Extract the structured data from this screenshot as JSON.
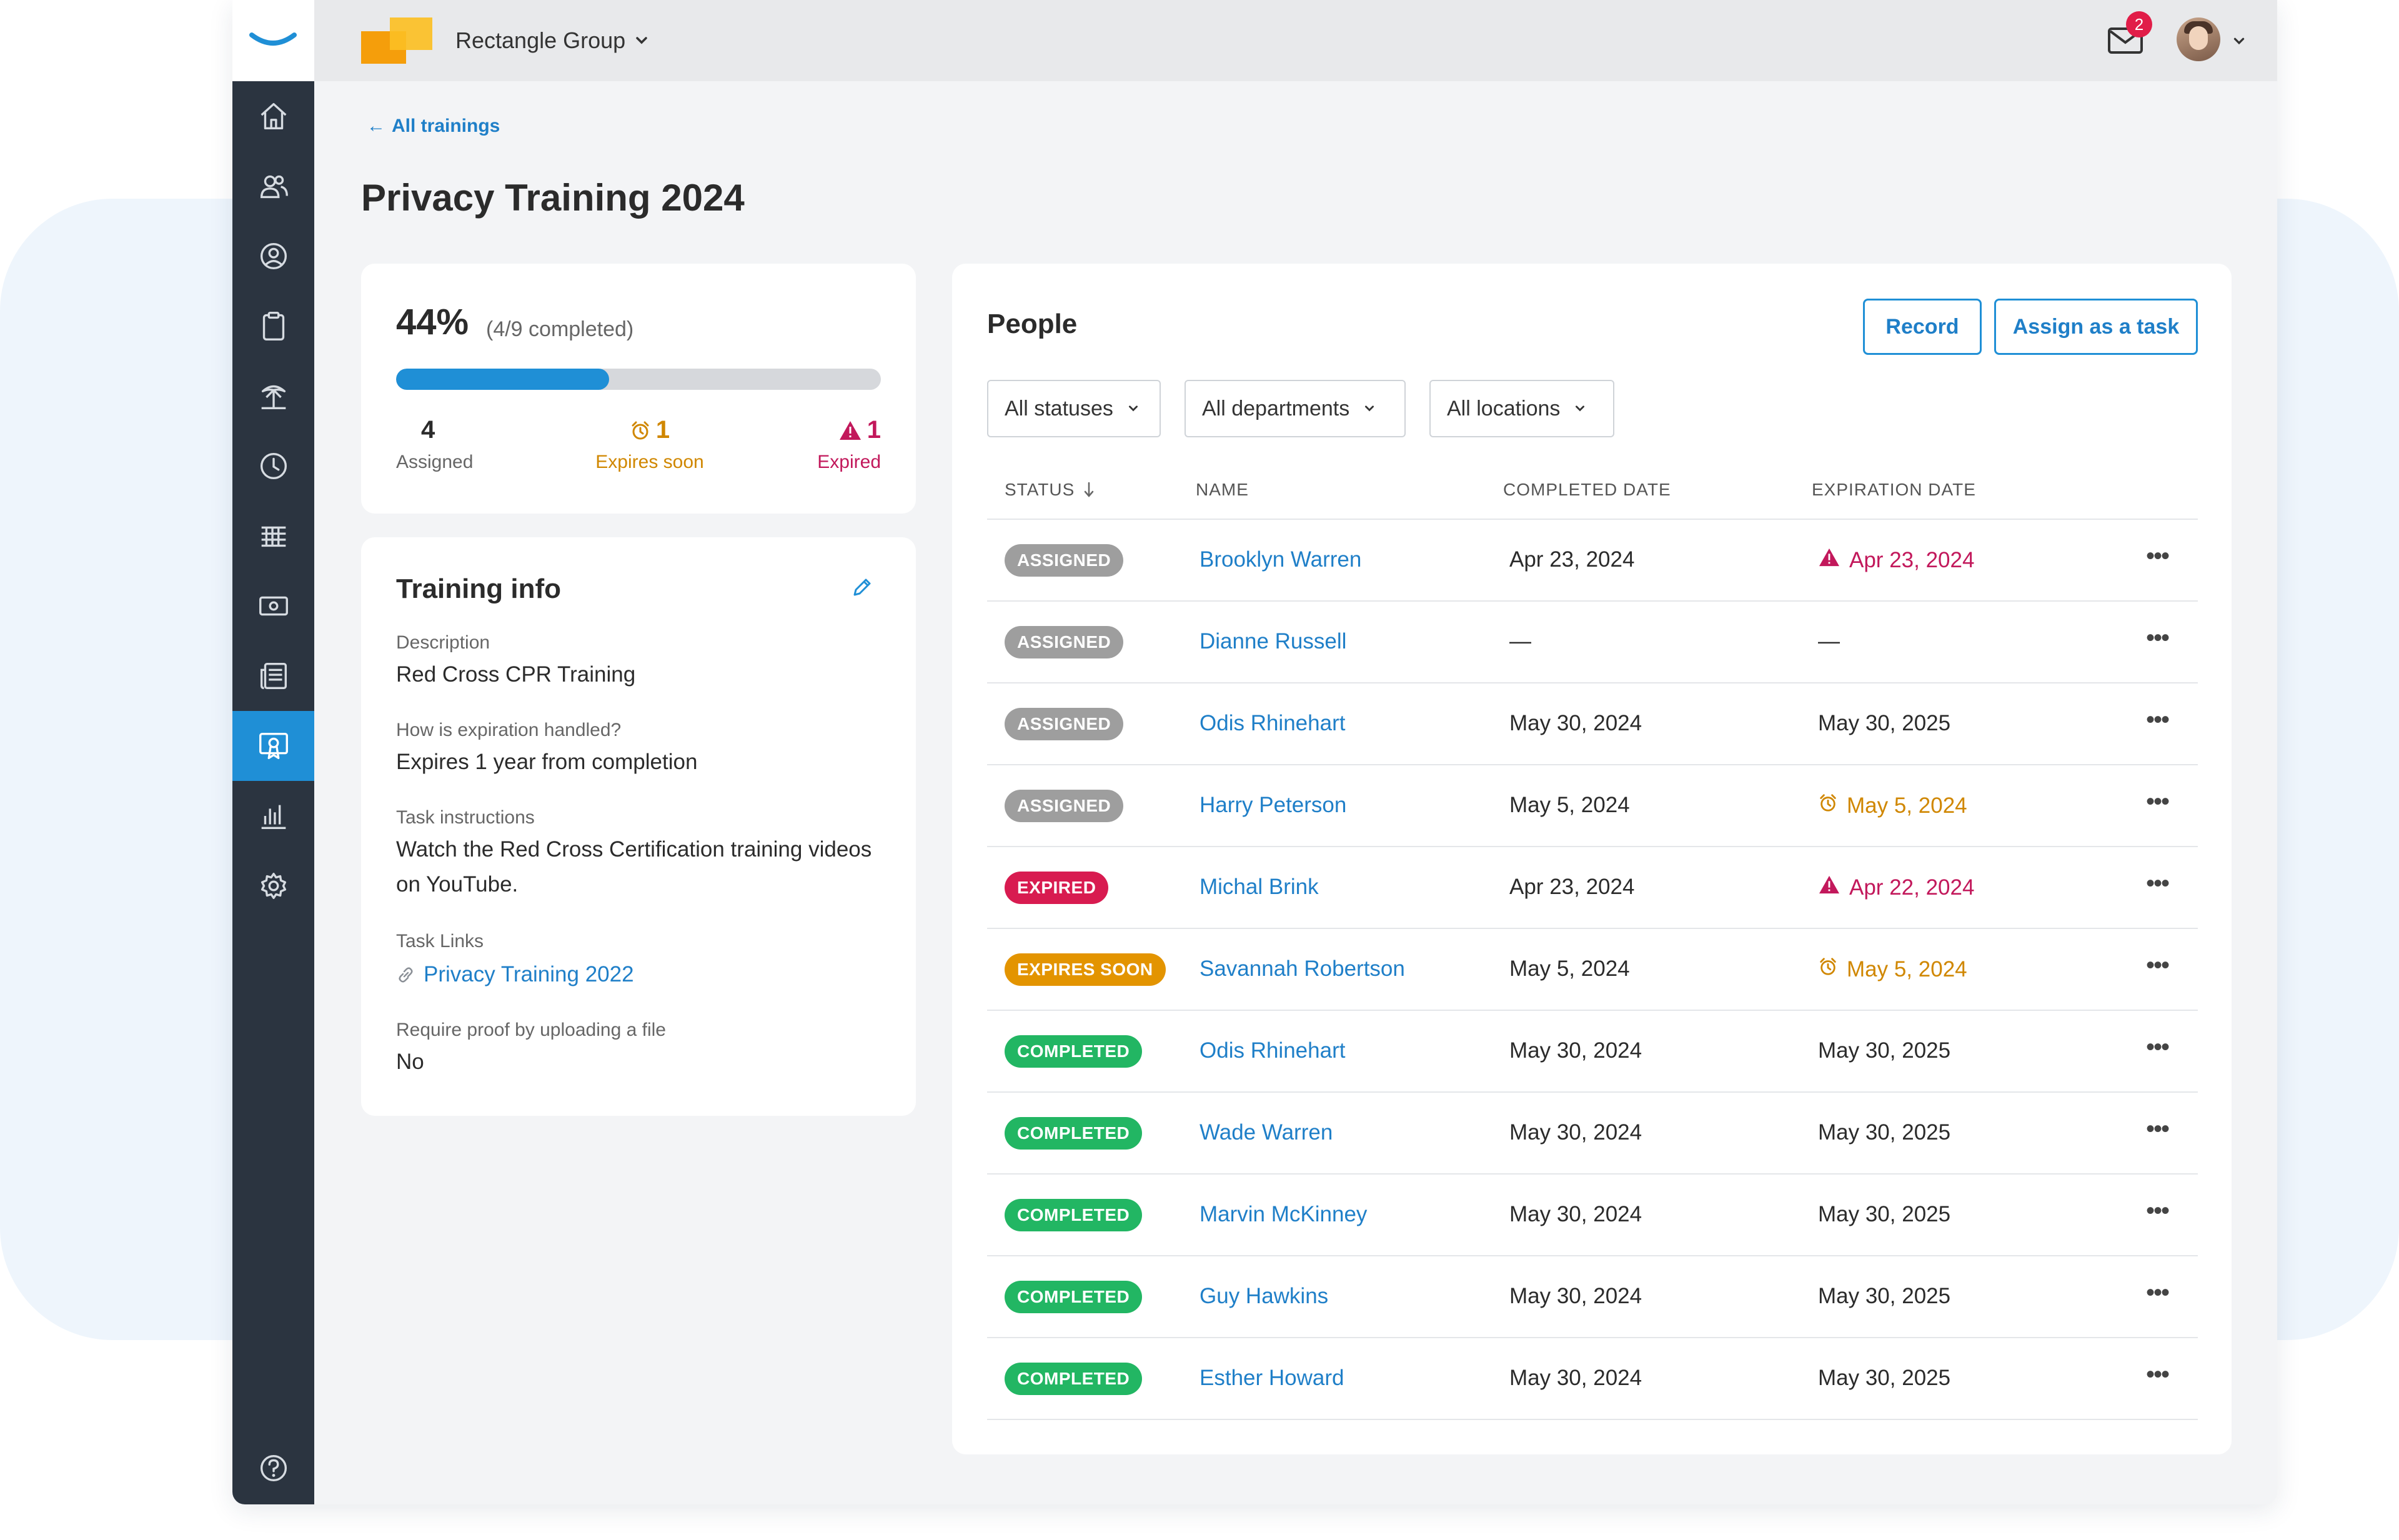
{
  "header": {
    "company_name": "Rectangle Group",
    "mail_badge_count": "2"
  },
  "sidebar": {
    "items": [
      {
        "icon": "home-icon"
      },
      {
        "icon": "people-icon"
      },
      {
        "icon": "profile-search-icon"
      },
      {
        "icon": "clipboard-icon"
      },
      {
        "icon": "vacation-icon"
      },
      {
        "icon": "clock-icon"
      },
      {
        "icon": "table-icon"
      },
      {
        "icon": "money-icon"
      },
      {
        "icon": "news-icon"
      },
      {
        "icon": "training-icon",
        "active": true
      },
      {
        "icon": "reports-icon"
      },
      {
        "icon": "settings-icon"
      }
    ],
    "help_icon": "help-icon"
  },
  "page": {
    "back_label": "All trainings",
    "title": "Privacy Training 2024"
  },
  "progress": {
    "percent_label": "44%",
    "completed_label": "(4/9 completed)",
    "fraction": 0.44,
    "assigned_count": "4",
    "assigned_label": "Assigned",
    "expires_soon_count": "1",
    "expires_soon_label": "Expires soon",
    "expired_count": "1",
    "expired_label": "Expired"
  },
  "training_info": {
    "title": "Training info",
    "description_label": "Description",
    "description_value": "Red Cross CPR Training",
    "expiration_label": "How is expiration handled?",
    "expiration_value": "Expires 1 year from completion",
    "instructions_label": "Task instructions",
    "instructions_value": "Watch the Red Cross Certification training videos on YouTube.",
    "links_label": "Task Links",
    "link_text": "Privacy Training 2022",
    "proof_label": "Require proof by uploading a file",
    "proof_value": "No"
  },
  "people": {
    "title": "People",
    "record_label": "Record",
    "assign_label": "Assign as a task",
    "filters": {
      "status": "All statuses",
      "department": "All departments",
      "location": "All locations"
    },
    "columns": {
      "status": "STATUS",
      "name": "NAME",
      "completed": "COMPLETED DATE",
      "expiration": "EXPIRATION DATE"
    },
    "status_colors": {
      "ASSIGNED": "#9e9e9e",
      "EXPIRED": "#d81b50",
      "EXPIRES SOON": "#e39400",
      "COMPLETED": "#22b663"
    },
    "rows": [
      {
        "status": "ASSIGNED",
        "name": "Brooklyn Warren",
        "completed": "Apr 23, 2024",
        "expiration": "Apr 23, 2024",
        "exp_state": "expired"
      },
      {
        "status": "ASSIGNED",
        "name": "Dianne Russell",
        "completed": "—",
        "expiration": "—",
        "exp_state": "normal"
      },
      {
        "status": "ASSIGNED",
        "name": "Odis Rhinehart",
        "completed": "May 30, 2024",
        "expiration": "May 30, 2025",
        "exp_state": "normal"
      },
      {
        "status": "ASSIGNED",
        "name": "Harry Peterson",
        "completed": "May 5, 2024",
        "expiration": "May 5, 2024",
        "exp_state": "soon"
      },
      {
        "status": "EXPIRED",
        "name": "Michal Brink",
        "completed": "Apr 23, 2024",
        "expiration": "Apr 22, 2024",
        "exp_state": "expired"
      },
      {
        "status": "EXPIRES SOON",
        "name": "Savannah Robertson",
        "completed": "May 5, 2024",
        "expiration": "May 5, 2024",
        "exp_state": "soon"
      },
      {
        "status": "COMPLETED",
        "name": "Odis Rhinehart",
        "completed": "May 30, 2024",
        "expiration": "May 30, 2025",
        "exp_state": "normal"
      },
      {
        "status": "COMPLETED",
        "name": "Wade Warren",
        "completed": "May 30, 2024",
        "expiration": "May 30, 2025",
        "exp_state": "normal"
      },
      {
        "status": "COMPLETED",
        "name": "Marvin McKinney",
        "completed": "May 30, 2024",
        "expiration": "May 30, 2025",
        "exp_state": "normal"
      },
      {
        "status": "COMPLETED",
        "name": "Guy Hawkins",
        "completed": "May 30, 2024",
        "expiration": "May 30, 2025",
        "exp_state": "normal"
      },
      {
        "status": "COMPLETED",
        "name": "Esther Howard",
        "completed": "May 30, 2024",
        "expiration": "May 30, 2025",
        "exp_state": "normal"
      }
    ],
    "more_label": "•••"
  }
}
